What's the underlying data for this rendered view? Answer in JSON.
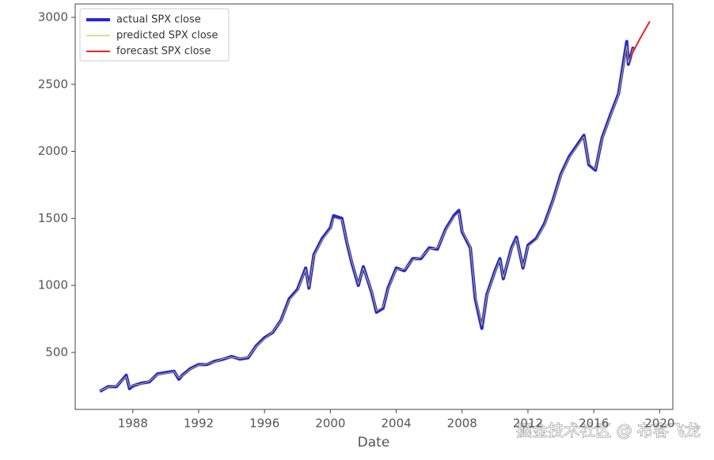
{
  "chart_data": {
    "type": "line",
    "xlabel": "Date",
    "xlim": [
      1984.5,
      2020.8
    ],
    "xticks": [
      1988,
      1992,
      1996,
      2000,
      2004,
      2008,
      2012,
      2016,
      2020
    ],
    "ylim": [
      75,
      3100
    ],
    "yticks": [
      500,
      1000,
      1500,
      2000,
      2500,
      3000
    ],
    "legend": "upper left",
    "series": [
      {
        "name": "actual SPX close",
        "color": "#2424e0",
        "width": 4,
        "x": [
          1986.0,
          1986.5,
          1987.0,
          1987.6,
          1987.8,
          1988.0,
          1988.5,
          1989.0,
          1989.5,
          1990.0,
          1990.5,
          1990.8,
          1991.0,
          1991.5,
          1992.0,
          1992.5,
          1993.0,
          1993.5,
          1994.0,
          1994.5,
          1995.0,
          1995.5,
          1996.0,
          1996.5,
          1997.0,
          1997.5,
          1998.0,
          1998.5,
          1998.7,
          1999.0,
          1999.5,
          2000.0,
          2000.2,
          2000.7,
          2001.0,
          2001.3,
          2001.7,
          2002.0,
          2002.5,
          2002.8,
          2003.2,
          2003.5,
          2004.0,
          2004.5,
          2005.0,
          2005.5,
          2006.0,
          2006.5,
          2007.0,
          2007.5,
          2007.8,
          2008.0,
          2008.5,
          2008.8,
          2009.2,
          2009.5,
          2010.0,
          2010.3,
          2010.5,
          2011.0,
          2011.3,
          2011.7,
          2012.0,
          2012.5,
          2013.0,
          2013.5,
          2014.0,
          2014.5,
          2015.0,
          2015.4,
          2015.7,
          2016.1,
          2016.5,
          2017.0,
          2017.5,
          2018.0,
          2018.1,
          2018.4
        ],
        "values": [
          210,
          245,
          245,
          330,
          230,
          250,
          270,
          280,
          340,
          350,
          360,
          300,
          330,
          380,
          410,
          410,
          435,
          450,
          470,
          450,
          460,
          550,
          610,
          650,
          740,
          900,
          970,
          1130,
          980,
          1230,
          1350,
          1430,
          1520,
          1500,
          1320,
          1170,
          1000,
          1140,
          950,
          800,
          830,
          980,
          1130,
          1110,
          1200,
          1200,
          1280,
          1270,
          1420,
          1520,
          1560,
          1400,
          1280,
          900,
          680,
          930,
          1110,
          1200,
          1050,
          1280,
          1360,
          1130,
          1300,
          1350,
          1460,
          1630,
          1830,
          1960,
          2050,
          2120,
          1900,
          1860,
          2100,
          2270,
          2430,
          2820,
          2650,
          2780
        ]
      },
      {
        "name": "predicted SPX close",
        "color": "#bcbd22",
        "width": 1,
        "x": [
          1986.0,
          1986.5,
          1987.0,
          1987.6,
          1987.8,
          1988.0,
          1988.5,
          1989.0,
          1989.5,
          1990.0,
          1990.5,
          1990.8,
          1991.0,
          1991.5,
          1992.0,
          1992.5,
          1993.0,
          1993.5,
          1994.0,
          1994.5,
          1995.0,
          1995.5,
          1996.0,
          1996.5,
          1997.0,
          1997.5,
          1998.0,
          1998.5,
          1998.7,
          1999.0,
          1999.5,
          2000.0,
          2000.2,
          2000.7,
          2001.0,
          2001.3,
          2001.7,
          2002.0,
          2002.5,
          2002.8,
          2003.2,
          2003.5,
          2004.0,
          2004.5,
          2005.0,
          2005.5,
          2006.0,
          2006.5,
          2007.0,
          2007.5,
          2007.8,
          2008.0,
          2008.5,
          2008.8,
          2009.2,
          2009.5,
          2010.0,
          2010.3,
          2010.5,
          2011.0,
          2011.3,
          2011.7,
          2012.0,
          2012.5,
          2013.0,
          2013.5,
          2014.0,
          2014.5,
          2015.0,
          2015.4,
          2015.7,
          2016.1,
          2016.5,
          2017.0,
          2017.5,
          2018.0,
          2018.1,
          2018.4
        ],
        "values": [
          215,
          240,
          250,
          320,
          240,
          255,
          265,
          285,
          335,
          345,
          355,
          310,
          325,
          375,
          405,
          415,
          430,
          455,
          465,
          455,
          465,
          545,
          600,
          655,
          735,
          890,
          960,
          1120,
          990,
          1220,
          1340,
          1420,
          1500,
          1490,
          1330,
          1180,
          1010,
          1130,
          960,
          810,
          840,
          970,
          1120,
          1120,
          1190,
          1210,
          1270,
          1280,
          1410,
          1510,
          1540,
          1410,
          1290,
          920,
          700,
          920,
          1100,
          1190,
          1060,
          1270,
          1350,
          1140,
          1290,
          1340,
          1450,
          1620,
          1820,
          1950,
          2040,
          2110,
          1910,
          1870,
          2090,
          2260,
          2420,
          2790,
          2660,
          2770
        ]
      },
      {
        "name": "forecast SPX close",
        "color": "#ee2222",
        "width": 2,
        "x": [
          2018.2,
          2018.8,
          2019.4
        ],
        "values": [
          2700,
          2840,
          2970
        ]
      }
    ]
  },
  "watermark": "掘金技术社区 @ 布客飞龙"
}
